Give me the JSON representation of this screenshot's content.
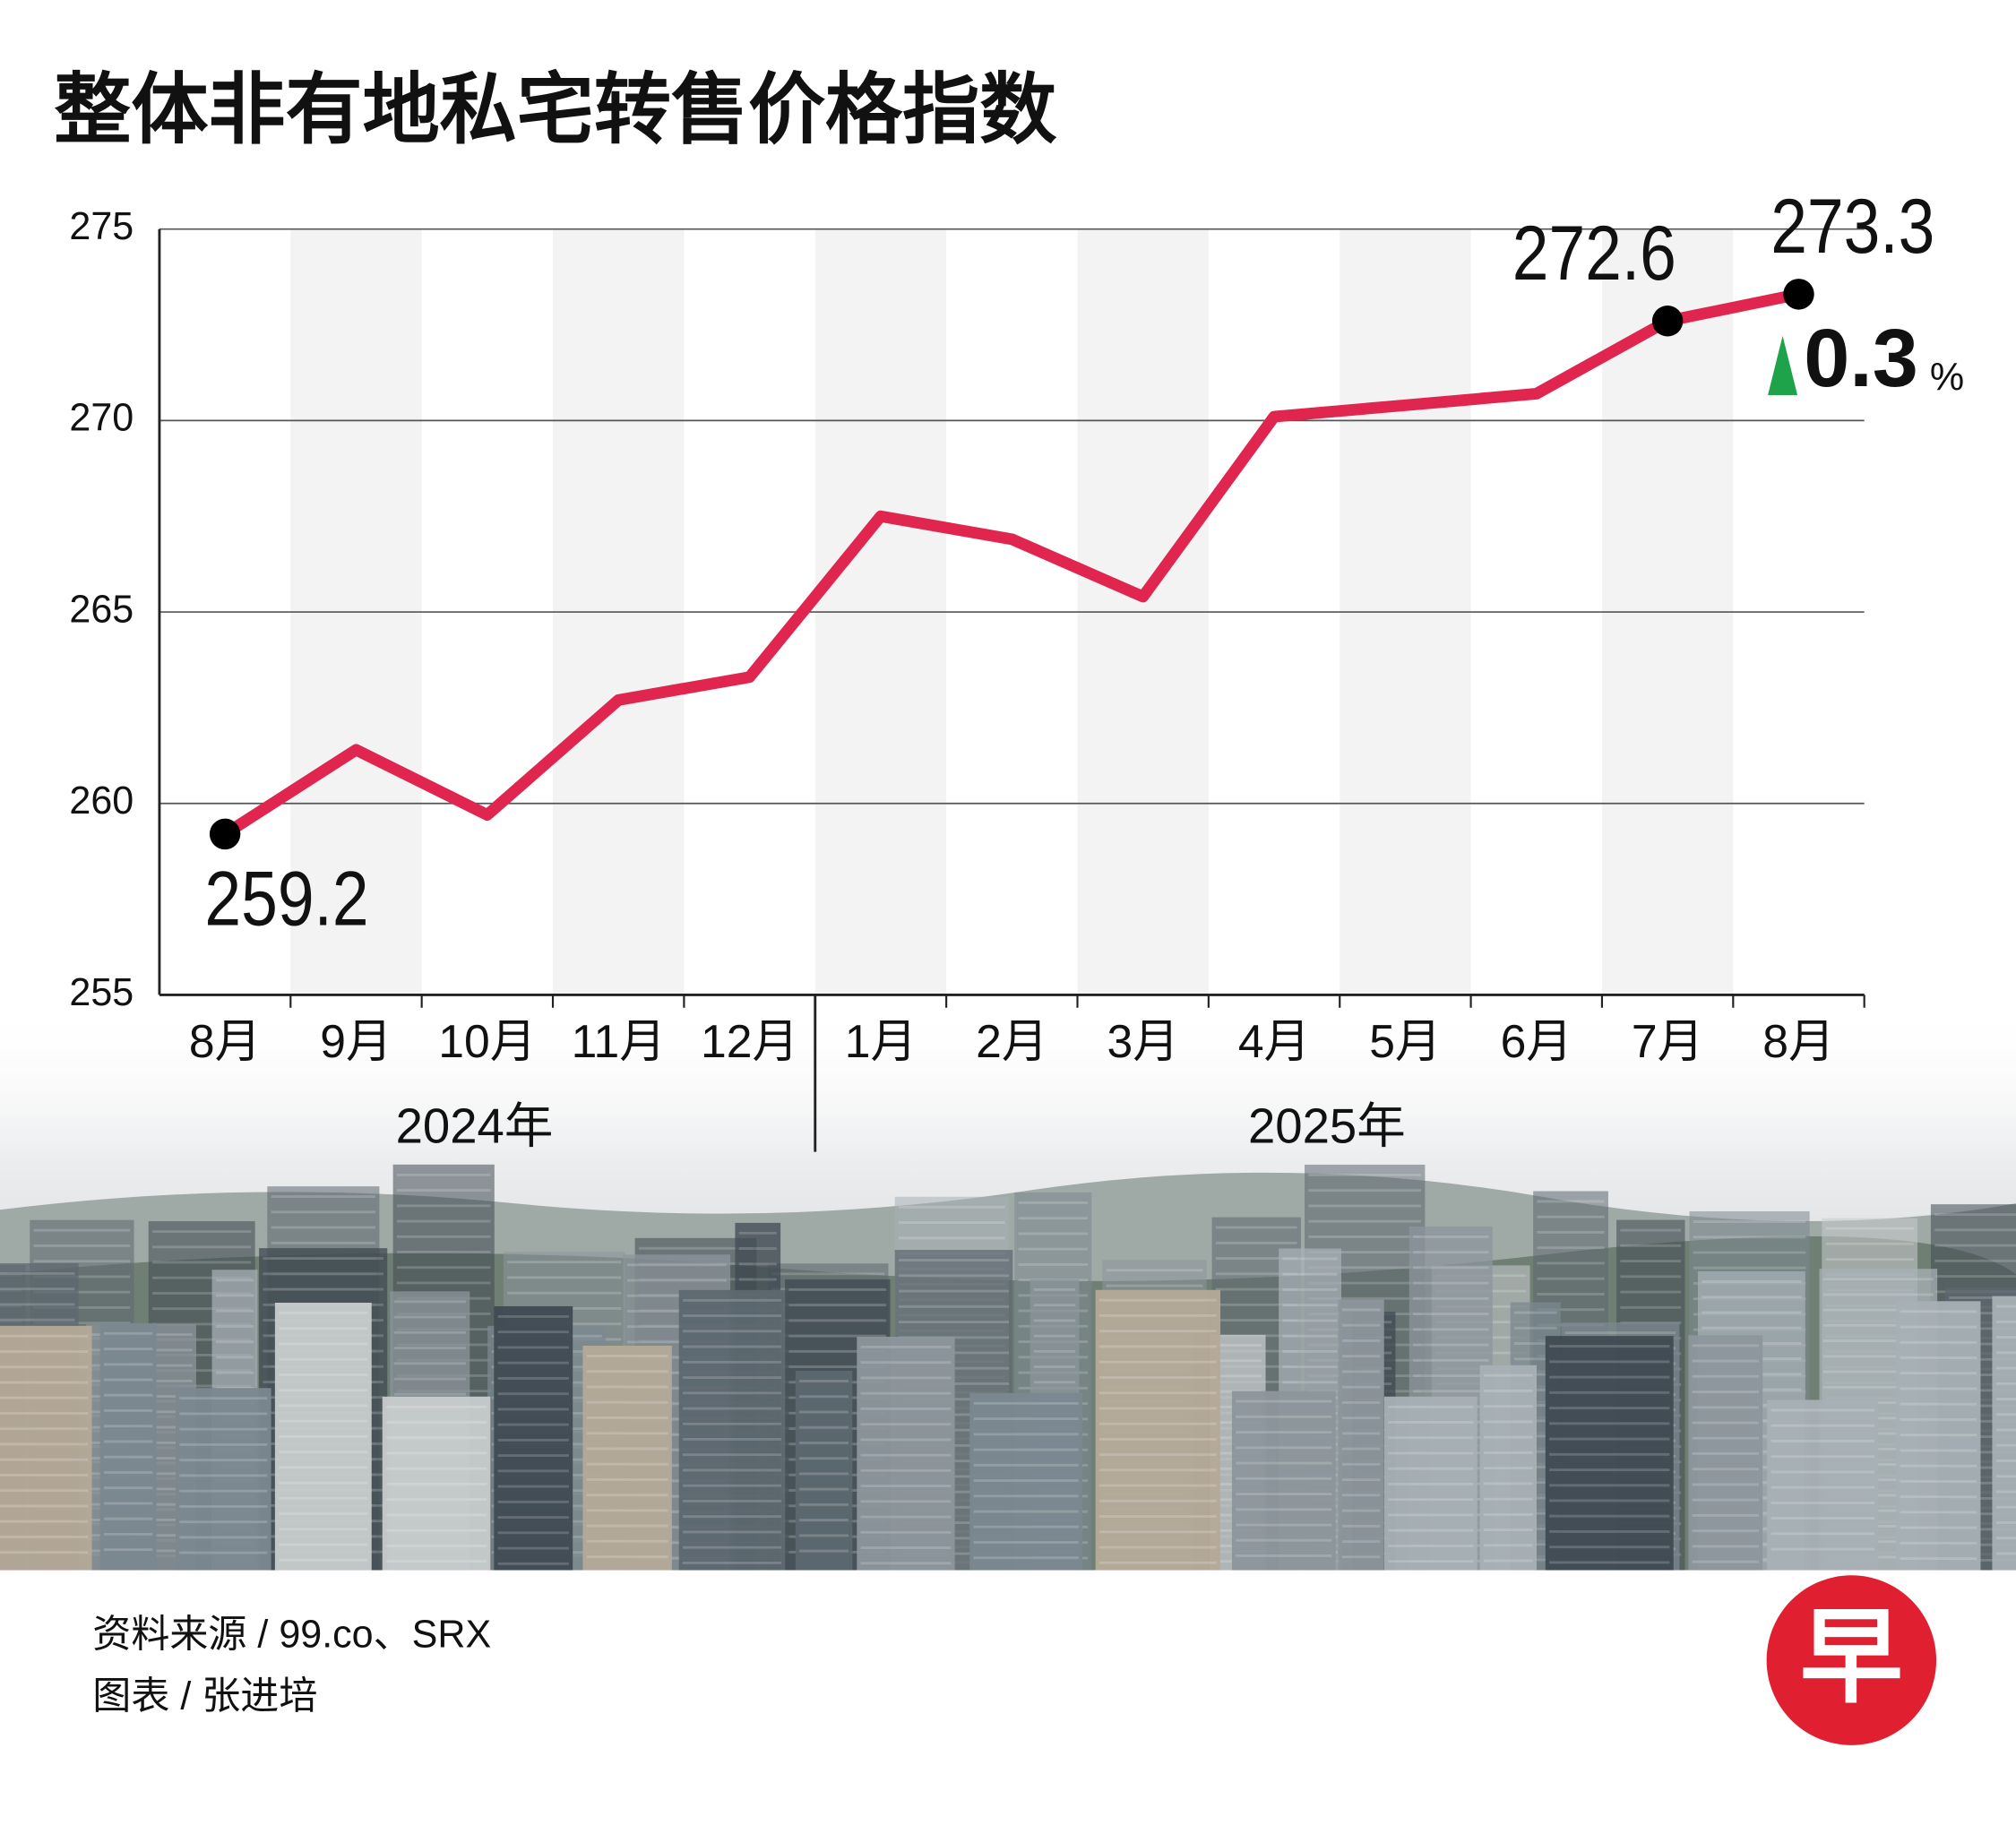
{
  "chart_data": {
    "type": "line",
    "title": "整体非有地私宅转售价格指数",
    "categories": [
      "8月",
      "9月",
      "10月",
      "11月",
      "12月",
      "1月",
      "2月",
      "3月",
      "4月",
      "5月",
      "6月",
      "7月",
      "8月"
    ],
    "groups": [
      {
        "label": "2024年",
        "size": 5
      },
      {
        "label": "2025年",
        "size": 8
      }
    ],
    "values": [
      259.2,
      261.4,
      259.7,
      262.7,
      263.3,
      267.5,
      266.9,
      265.4,
      270.1,
      270.4,
      270.7,
      272.6,
      273.3
    ],
    "value_labels": [
      "259.2",
      null,
      null,
      null,
      null,
      null,
      null,
      null,
      null,
      null,
      null,
      "272.6",
      "273.3"
    ],
    "color": "#e0264f",
    "ylim": [
      255,
      275
    ],
    "yticks": [
      255,
      260,
      265,
      270,
      275
    ],
    "grid": true,
    "alternate_shading": true,
    "annotation": {
      "text": "0.3",
      "unit": "%",
      "color": "#1fa34a"
    }
  },
  "footer": {
    "source": "资料来源 / 99.co、SRX",
    "credit": "图表 / 张进培",
    "logo": "早"
  }
}
